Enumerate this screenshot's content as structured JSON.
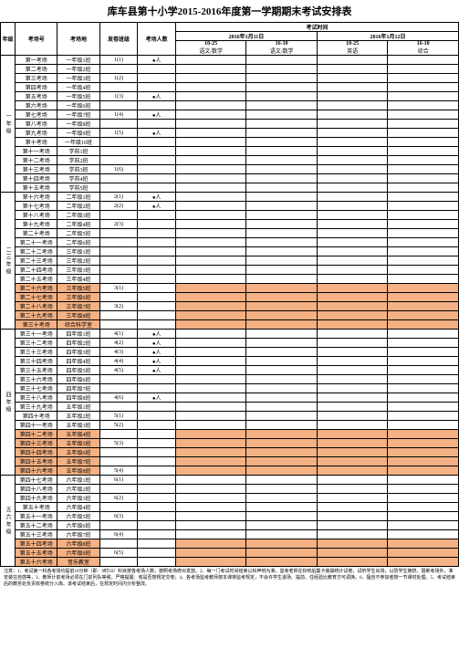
{
  "title": "库车县第十小学2015-2016年度第一学期期末考试安排表",
  "top_header": {
    "grade": "年级",
    "room_no": "考场号",
    "room": "考场地",
    "class": "发卷班级",
    "count": "考场人数",
    "exam_time": "考试时间",
    "day1": "2016年1月11日",
    "day2": "2016年1月12日"
  },
  "time_slots": [
    {
      "t": "10-25",
      "s": "语文/数学"
    },
    {
      "t": "16-10",
      "s": "语文/数学"
    },
    {
      "t": "10-25",
      "s": "英语"
    },
    {
      "t": "16-10",
      "s": "综合"
    }
  ],
  "grade1": {
    "label": "一年级",
    "rows": [
      {
        "no": "第一考场",
        "room": "一年级1班",
        "cls": "1(1)",
        "cnt": "●人"
      },
      {
        "no": "第二考场",
        "room": "一年级2班",
        "cls": "",
        "cnt": ""
      },
      {
        "no": "第三考场",
        "room": "一年级3班",
        "cls": "1(2)",
        "cnt": ""
      },
      {
        "no": "第四考场",
        "room": "一年级4班",
        "cls": "",
        "cnt": ""
      },
      {
        "no": "第五考场",
        "room": "一年级5班",
        "cls": "1(3)",
        "cnt": "●人"
      },
      {
        "no": "第六考场",
        "room": "一年级6班",
        "cls": "",
        "cnt": ""
      },
      {
        "no": "第七考场",
        "room": "一年级7班",
        "cls": "1(4)",
        "cnt": "●人"
      },
      {
        "no": "第八考场",
        "room": "一年级8班",
        "cls": "",
        "cnt": ""
      },
      {
        "no": "第九考场",
        "room": "一年级9班",
        "cls": "1(5)",
        "cnt": "●人"
      },
      {
        "no": "第十考场",
        "room": "一年级10班",
        "cls": "",
        "cnt": ""
      },
      {
        "no": "第十一考场",
        "room": "学前1班",
        "cls": "",
        "cnt": ""
      },
      {
        "no": "第十二考场",
        "room": "学前2班",
        "cls": "",
        "cnt": ""
      },
      {
        "no": "第十三考场",
        "room": "学前3班",
        "cls": "1(6)",
        "cnt": ""
      },
      {
        "no": "第十四考场",
        "room": "学前4班",
        "cls": "",
        "cnt": ""
      },
      {
        "no": "第十五考场",
        "room": "学前5班",
        "cls": "",
        "cnt": ""
      }
    ]
  },
  "grade23": {
    "label": "二三年级",
    "rows": [
      {
        "no": "第十六考场",
        "room": "二年级1班",
        "cls": "2(1)",
        "cnt": "●人"
      },
      {
        "no": "第十七考场",
        "room": "二年级2班",
        "cls": "2(2)",
        "cnt": "●人"
      },
      {
        "no": "第十八考场",
        "room": "二年级3班",
        "cls": "",
        "cnt": ""
      },
      {
        "no": "第十九考场",
        "room": "二年级4班",
        "cls": "2(3)",
        "cnt": ""
      },
      {
        "no": "第二十考场",
        "room": "二年级5班",
        "cls": "",
        "cnt": ""
      },
      {
        "no": "第二十一考场",
        "room": "二年级6班",
        "cls": "",
        "cnt": ""
      },
      {
        "no": "第二十二考场",
        "room": "三年级1班",
        "cls": "",
        "cnt": ""
      },
      {
        "no": "第二十三考场",
        "room": "三年级2班",
        "cls": "",
        "cnt": ""
      },
      {
        "no": "第二十四考场",
        "room": "三年级3班",
        "cls": "",
        "cnt": ""
      },
      {
        "no": "第二十五考场",
        "room": "三年级4班",
        "cls": "",
        "cnt": ""
      },
      {
        "no": "第二十六考场",
        "room": "三年级5班",
        "cls": "3(1)",
        "cnt": "",
        "hl": true
      },
      {
        "no": "第二十七考场",
        "room": "三年级6班",
        "cls": "",
        "cnt": "",
        "hl": true
      },
      {
        "no": "第二十八考场",
        "room": "三年级7班",
        "cls": "3(2)",
        "cnt": "",
        "hl": true
      },
      {
        "no": "第二十九考场",
        "room": "三年级8班",
        "cls": "",
        "cnt": "",
        "hl": true
      },
      {
        "no": "第三十考场",
        "room": "综合科学室",
        "cls": "",
        "cnt": "",
        "hl": true
      }
    ]
  },
  "grade4": {
    "label": "四年级",
    "rows": [
      {
        "no": "第三十一考场",
        "room": "四年级1班",
        "cls": "4(1)",
        "cnt": "●人"
      },
      {
        "no": "第三十二考场",
        "room": "四年级2班",
        "cls": "4(2)",
        "cnt": "●人"
      },
      {
        "no": "第三十三考场",
        "room": "四年级3班",
        "cls": "4(3)",
        "cnt": "●人"
      },
      {
        "no": "第三十四考场",
        "room": "四年级4班",
        "cls": "4(4)",
        "cnt": "●人"
      },
      {
        "no": "第三十五考场",
        "room": "四年级5班",
        "cls": "4(5)",
        "cnt": "●人"
      },
      {
        "no": "第三十六考场",
        "room": "四年级6班",
        "cls": "",
        "cnt": ""
      },
      {
        "no": "第三十七考场",
        "room": "四年级7班",
        "cls": "",
        "cnt": ""
      },
      {
        "no": "第三十八考场",
        "room": "四年级8班",
        "cls": "4(6)",
        "cnt": "●人"
      },
      {
        "no": "第三十九考场",
        "room": "五年级1班",
        "cls": "",
        "cnt": ""
      },
      {
        "no": "第四十考场",
        "room": "五年级2班",
        "cls": "5(1)",
        "cnt": ""
      },
      {
        "no": "第四十一考场",
        "room": "五年级3班",
        "cls": "5(2)",
        "cnt": ""
      },
      {
        "no": "第四十二考场",
        "room": "五年级4班",
        "cls": "",
        "cnt": "",
        "hl": true
      },
      {
        "no": "第四十三考场",
        "room": "五年级5班",
        "cls": "5(3)",
        "cnt": "",
        "hl": true
      },
      {
        "no": "第四十四考场",
        "room": "五年级6班",
        "cls": "",
        "cnt": "",
        "hl": true
      },
      {
        "no": "第四十五考场",
        "room": "五年级7班",
        "cls": "",
        "cnt": "",
        "hl": true
      },
      {
        "no": "第四十六考场",
        "room": "五年级8班",
        "cls": "5(4)",
        "cnt": "",
        "hl": true
      }
    ]
  },
  "grade56": {
    "label": "五六年级",
    "rows": [
      {
        "no": "第四十七考场",
        "room": "六年级1班",
        "cls": "6(1)",
        "cnt": ""
      },
      {
        "no": "第四十八考场",
        "room": "六年级2班",
        "cls": "",
        "cnt": ""
      },
      {
        "no": "第四十九考场",
        "room": "六年级3班",
        "cls": "6(2)",
        "cnt": ""
      },
      {
        "no": "第五十考场",
        "room": "六年级4班",
        "cls": "",
        "cnt": ""
      },
      {
        "no": "第五十一考场",
        "room": "六年级5班",
        "cls": "6(3)",
        "cnt": ""
      },
      {
        "no": "第五十二考场",
        "room": "六年级6班",
        "cls": "",
        "cnt": ""
      },
      {
        "no": "第五十三考场",
        "room": "六年级7班",
        "cls": "6(4)",
        "cnt": ""
      },
      {
        "no": "第五十四考场",
        "room": "六年级8班",
        "cls": "",
        "cnt": "",
        "hl": true
      },
      {
        "no": "第五十五考场",
        "room": "六年级9班",
        "cls": "6(5)",
        "cnt": "",
        "hl": true
      },
      {
        "no": "第五十六考场",
        "room": "音乐教室",
        "cls": "",
        "cnt": "",
        "hl": true
      }
    ]
  },
  "notes": "注意：1、考试第一科各考场均提前10分钟（即：9时50）科目按各考场人数，按照考场修对发放。2、每一门考试时间结束以铃声响为准。监考老师在铃响后集卡装袋统计试卷，试听学生出场，以防学生拥挤。阻断考场外，准安装在自感等，3、教师计前考场必须在门前列队等候。严格提醒：收是否按规定交卷；4、各考场监考教师按本课排监考规定，不会许学生退场、提前、任经验比教育方可调换。6、擅自不参加者按一节课时处理。5、考试结束后的教务处负责收卷统分入库。该考试结束后，在规定时间内分析整改。"
}
